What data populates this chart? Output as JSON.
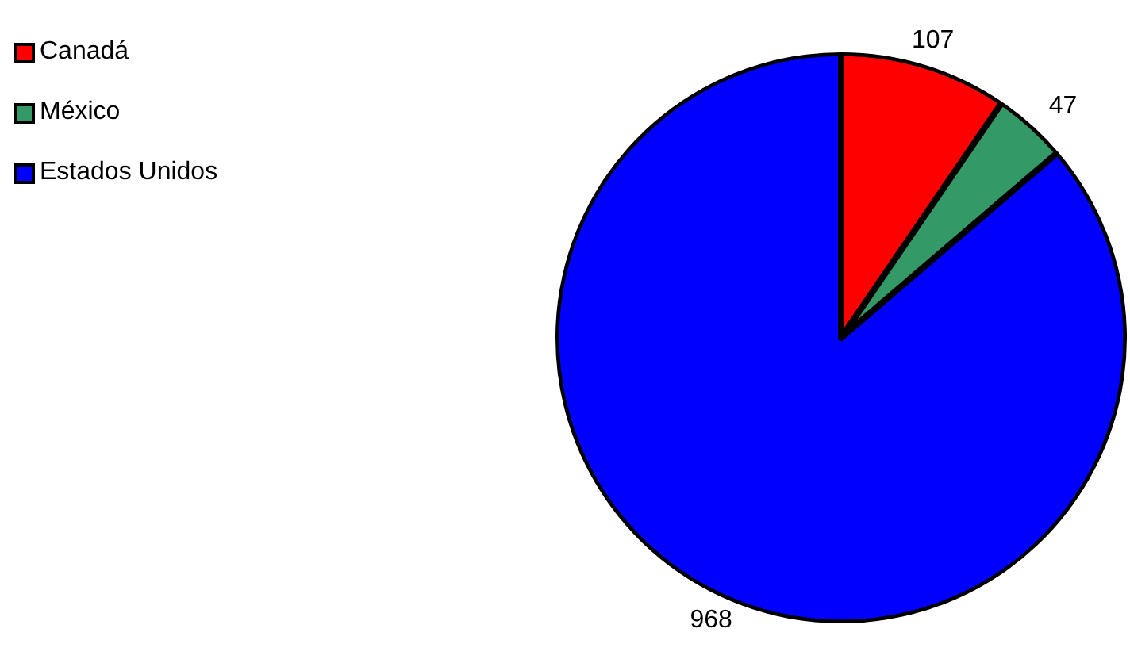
{
  "chart_data": {
    "type": "pie",
    "categories": [
      "Canadá",
      "México",
      "Estados Unidos"
    ],
    "values": [
      107,
      47,
      968
    ],
    "colors": [
      "#ff0000",
      "#339966",
      "#0000ff"
    ],
    "data_labels": true,
    "legend": "top left"
  }
}
